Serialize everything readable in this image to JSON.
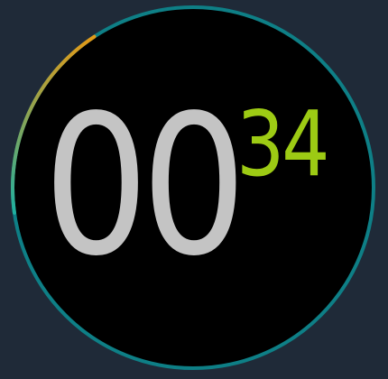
{
  "timer": {
    "minutes": "00",
    "seconds": "34",
    "progress": 0.09
  },
  "colors": {
    "background": "#1f2a38",
    "dial_face": "#000000",
    "ring_track": "#0e7f86",
    "progress_start": "#e39a17",
    "progress_end": "#1fb0a0",
    "minutes_text": "#c4c4c4",
    "seconds_text": "#9dcb14"
  }
}
